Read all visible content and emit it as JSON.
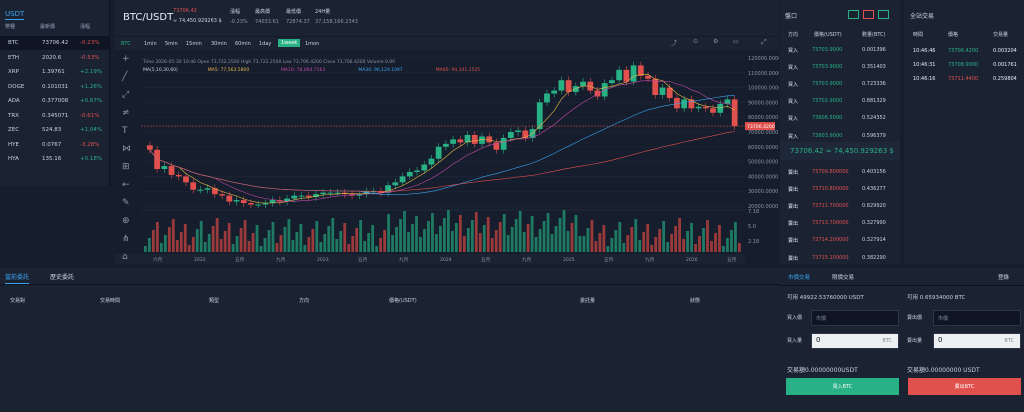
{
  "markets": {
    "tab": "USDT",
    "headers": [
      "幣種",
      "最新價",
      "漲幅"
    ],
    "rows": [
      {
        "sym": "BTC",
        "price": "73706.42",
        "chg": "-0.23%",
        "dir": "dn"
      },
      {
        "sym": "ETH",
        "price": "2020.6",
        "chg": "-0.53%",
        "dir": "dn"
      },
      {
        "sym": "XRP",
        "price": "1.39761",
        "chg": "+2.19%",
        "dir": "up"
      },
      {
        "sym": "DOGE",
        "price": "0.101031",
        "chg": "+1.26%",
        "dir": "up"
      },
      {
        "sym": "ADA",
        "price": "0.377008",
        "chg": "+0.67%",
        "dir": "up"
      },
      {
        "sym": "TRX",
        "price": "0.345071",
        "chg": "-0.61%",
        "dir": "dn"
      },
      {
        "sym": "ZEC",
        "price": "524.83",
        "chg": "+1.04%",
        "dir": "up"
      },
      {
        "sym": "HYE",
        "price": "0.0767",
        "chg": "-3.28%",
        "dir": "dn"
      },
      {
        "sym": "HYA",
        "price": "135.16",
        "chg": "+0.18%",
        "dir": "up"
      }
    ]
  },
  "ticker": {
    "pair": "BTC/USDT",
    "price": "73706.42",
    "cny": "≈ 74,450.929263 $",
    "stats": [
      {
        "label": "漲幅",
        "value": "-0.23%",
        "dir": "dn"
      },
      {
        "label": "最高價",
        "value": "74033.61"
      },
      {
        "label": "最低價",
        "value": "72874.37"
      },
      {
        "label": "24H量",
        "value": "37,158,166.2343"
      }
    ]
  },
  "toolbar": {
    "symbol": "BTC",
    "intervals": [
      "1min",
      "5min",
      "15min",
      "30min",
      "60min",
      "1day",
      "1week",
      "1mon"
    ],
    "active": "1week",
    "icons": [
      "indicator",
      "fullscreen",
      "setting",
      "screenshot"
    ]
  },
  "chart_data": {
    "type": "candlestick",
    "info": "Time 2026-05-30 10:46   Open 73,722.2500   High 73,722.2500   Low 73,706.4200   Close 73,706.4200   Volume 0.00",
    "ma": [
      {
        "name": "MA(5,10,30,60)",
        "color": "#c9d2e0"
      },
      {
        "name": "MA5: 77,563.5800",
        "color": "#e9b84a"
      },
      {
        "name": "MA10: 78,064.7163",
        "color": "#c24aa8"
      },
      {
        "name": "MA30: 96,129.1097",
        "color": "#3aa3f0"
      },
      {
        "name": "MA60: 94,341.1525",
        "color": "#e0504d"
      }
    ],
    "y_ticks": [
      "120000.0000",
      "110000.0000",
      "100000.0000",
      "90000.0000",
      "80000.0000",
      "70000.0000",
      "60000.0000",
      "50000.0000",
      "40000.0000",
      "30000.0000",
      "20000.0000"
    ],
    "last_price": "73706.4200",
    "vol_ticks": [
      "7.18",
      "5.0",
      "2.18"
    ],
    "x_ticks": [
      "六月",
      "2022",
      "五月",
      "九月",
      "2023",
      "五月",
      "九月",
      "2024",
      "五月",
      "九月",
      "2025",
      "五月",
      "九月",
      "2026",
      "五月"
    ],
    "closes": [
      58,
      45,
      47,
      41,
      40,
      36,
      31,
      31,
      32,
      28,
      27,
      23,
      24,
      22,
      21,
      21,
      22,
      24,
      23,
      25,
      27,
      27,
      26,
      28,
      29,
      29,
      29,
      28,
      27,
      28,
      30,
      30,
      29,
      34,
      36,
      40,
      43,
      44,
      48,
      52,
      60,
      62,
      65,
      63,
      68,
      62,
      67,
      63,
      58,
      66,
      70,
      71,
      66,
      72,
      90,
      96,
      98,
      105,
      97,
      101,
      104,
      98,
      94,
      103,
      105,
      112,
      104,
      115,
      108,
      106,
      95,
      100,
      93,
      86,
      92,
      86,
      87,
      86,
      83,
      89,
      92,
      74
    ]
  },
  "orderbook": {
    "title": "盤口",
    "headers": [
      "方向",
      "價格(USDT)",
      "數量(BTC)"
    ],
    "asks": [
      {
        "side": "買入",
        "price": "73703.9000",
        "qty": "0.001396"
      },
      {
        "side": "買入",
        "price": "73703.9000",
        "qty": "0.351403"
      },
      {
        "side": "買入",
        "price": "73703.9000",
        "qty": "0.723336"
      },
      {
        "side": "買入",
        "price": "73702.9000",
        "qty": "0.881329"
      },
      {
        "side": "買入",
        "price": "73606.5000",
        "qty": "0.524352"
      },
      {
        "side": "買入",
        "price": "73603.9000",
        "qty": "0.596379"
      }
    ],
    "mid": "73706.42 ≈ 74,450.929263 $",
    "bids": [
      {
        "side": "賣出",
        "price": "73709.800000",
        "qty": "0.403156"
      },
      {
        "side": "賣出",
        "price": "73710.800000",
        "qty": "0.436277"
      },
      {
        "side": "賣出",
        "price": "73711.700000",
        "qty": "0.829920"
      },
      {
        "side": "賣出",
        "price": "73713.700000",
        "qty": "0.327990"
      },
      {
        "side": "賣出",
        "price": "73714.200000",
        "qty": "0.327914"
      },
      {
        "side": "賣出",
        "price": "73715.100000",
        "qty": "0.382290"
      }
    ]
  },
  "trades": {
    "title": "全站交易",
    "headers": [
      "時間",
      "價格",
      "交易量"
    ],
    "rows": [
      {
        "time": "10:46:46",
        "price": "73706.4200",
        "qty": "0.003204",
        "dir": "up"
      },
      {
        "time": "10:46:31",
        "price": "73708.9000",
        "qty": "0.001761",
        "dir": "up"
      },
      {
        "time": "10:46:16",
        "price": "73711.4400",
        "qty": "0.259804",
        "dir": "dn"
      }
    ]
  },
  "orders": {
    "tab_current": "當前委託",
    "tab_history": "歷史委託",
    "columns": [
      "交易對",
      "交易時間",
      "類型",
      "方向",
      "價格(USDT)",
      "委託量",
      "狀態"
    ]
  },
  "trade": {
    "tab_limit": "市價交易",
    "tab_market": "限價交易",
    "login": "登錄",
    "buy": {
      "avail": "可用 49922.53760000 USDT",
      "price_label": "買入價",
      "price_ph": "市價",
      "qty_label": "買入量",
      "qty_value": "0",
      "unit": "BTC",
      "total": "交易額0.00000000USDT",
      "button": "買入BTC"
    },
    "sell": {
      "avail": "可用 0.65934000 BTC",
      "price_label": "賣出價",
      "price_ph": "市價",
      "qty_label": "賣出量",
      "qty_value": "0",
      "unit": "BTC",
      "total": "交易額0.00000000 USDT",
      "button": "賣出BTC"
    }
  },
  "colors": {
    "up": "#29b186",
    "down": "#e0504d",
    "accent": "#3aa3f0"
  }
}
